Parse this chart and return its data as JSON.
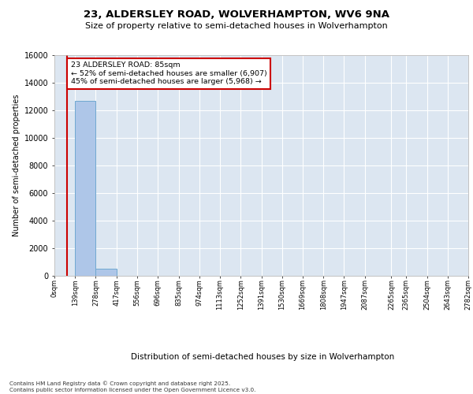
{
  "title_line1": "23, ALDERSLEY ROAD, WOLVERHAMPTON, WV6 9NA",
  "title_line2": "Size of property relative to semi-detached houses in Wolverhampton",
  "xlabel": "Distribution of semi-detached houses by size in Wolverhampton",
  "ylabel": "Number of semi-detached properties",
  "property_size": 85,
  "annotation_text": "23 ALDERSLEY ROAD: 85sqm\n← 52% of semi-detached houses are smaller (6,907)\n45% of semi-detached houses are larger (5,968) →",
  "footer_text": "Contains HM Land Registry data © Crown copyright and database right 2025.\nContains public sector information licensed under the Open Government Licence v3.0.",
  "bins": [
    0,
    139,
    278,
    417,
    556,
    696,
    835,
    974,
    1113,
    1252,
    1391,
    1530,
    1669,
    1808,
    1947,
    2087,
    2265,
    2365,
    2504,
    2643,
    2782
  ],
  "bin_labels": [
    "0sqm",
    "139sqm",
    "278sqm",
    "417sqm",
    "556sqm",
    "696sqm",
    "835sqm",
    "974sqm",
    "1113sqm",
    "1252sqm",
    "1391sqm",
    "1530sqm",
    "1669sqm",
    "1808sqm",
    "1947sqm",
    "2087sqm",
    "2265sqm",
    "2365sqm",
    "2504sqm",
    "2643sqm",
    "2782sqm"
  ],
  "counts": [
    0,
    12700,
    500,
    0,
    0,
    0,
    0,
    0,
    0,
    0,
    0,
    0,
    0,
    0,
    0,
    0,
    0,
    0,
    0,
    0
  ],
  "bar_color": "#aec6e8",
  "bar_edge_color": "#6fa8d0",
  "vline_color": "#cc0000",
  "background_color": "#dce6f1",
  "ylim": [
    0,
    16000
  ],
  "yticks": [
    0,
    2000,
    4000,
    6000,
    8000,
    10000,
    12000,
    14000,
    16000
  ]
}
